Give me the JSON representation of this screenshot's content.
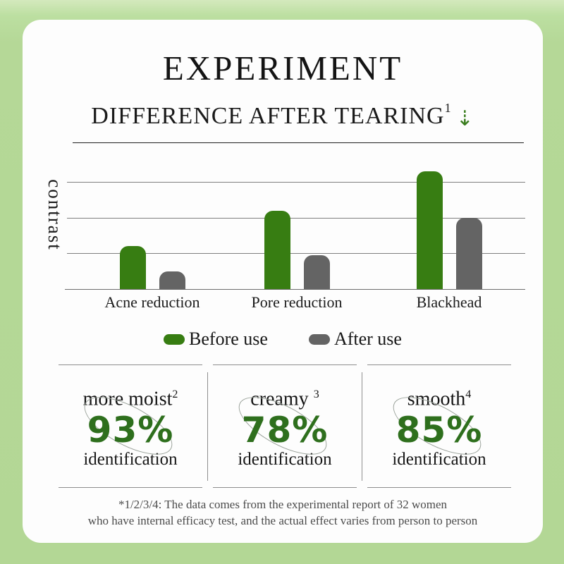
{
  "header": {
    "title": "EXPERIMENT",
    "subtitle": "DIFFERENCE AFTER TEARING",
    "subtitle_superscript": "1",
    "subtitle_arrow": "⇣"
  },
  "chart_data": {
    "type": "bar",
    "title": "",
    "ylabel": "contrast",
    "categories": [
      "Acne reduction",
      "Pore reduction",
      "Blackhead"
    ],
    "series": [
      {
        "name": "Before use",
        "color": "#377d12",
        "values": [
          1.2,
          2.2,
          3.3
        ]
      },
      {
        "name": "After use",
        "color": "#646464",
        "values": [
          0.5,
          0.95,
          2.0
        ]
      }
    ],
    "ylim": [
      0,
      3.6
    ],
    "gridlines": [
      1,
      2,
      3
    ],
    "tick_labels_shown": false,
    "legend_position": "bottom"
  },
  "stats": [
    {
      "label": "more moist",
      "superscript": "2",
      "value": "93%",
      "caption": "identification"
    },
    {
      "label": "creamy ",
      "superscript": "3",
      "value": "78%",
      "caption": "identification"
    },
    {
      "label": "smooth",
      "superscript": "4",
      "value": "85%",
      "caption": "identification"
    }
  ],
  "footnote": {
    "line1": "*1/2/3/4:  The data comes from the experimental report of 32 women",
    "line2": "who have internal efficacy test, and the actual effect varies from person to person"
  },
  "colors": {
    "accent_green": "#377d12",
    "percent_green": "#2e6f1d",
    "bar_gray": "#646464",
    "arrow_green": "#3a7d1e",
    "background_green": "#b5d897"
  }
}
